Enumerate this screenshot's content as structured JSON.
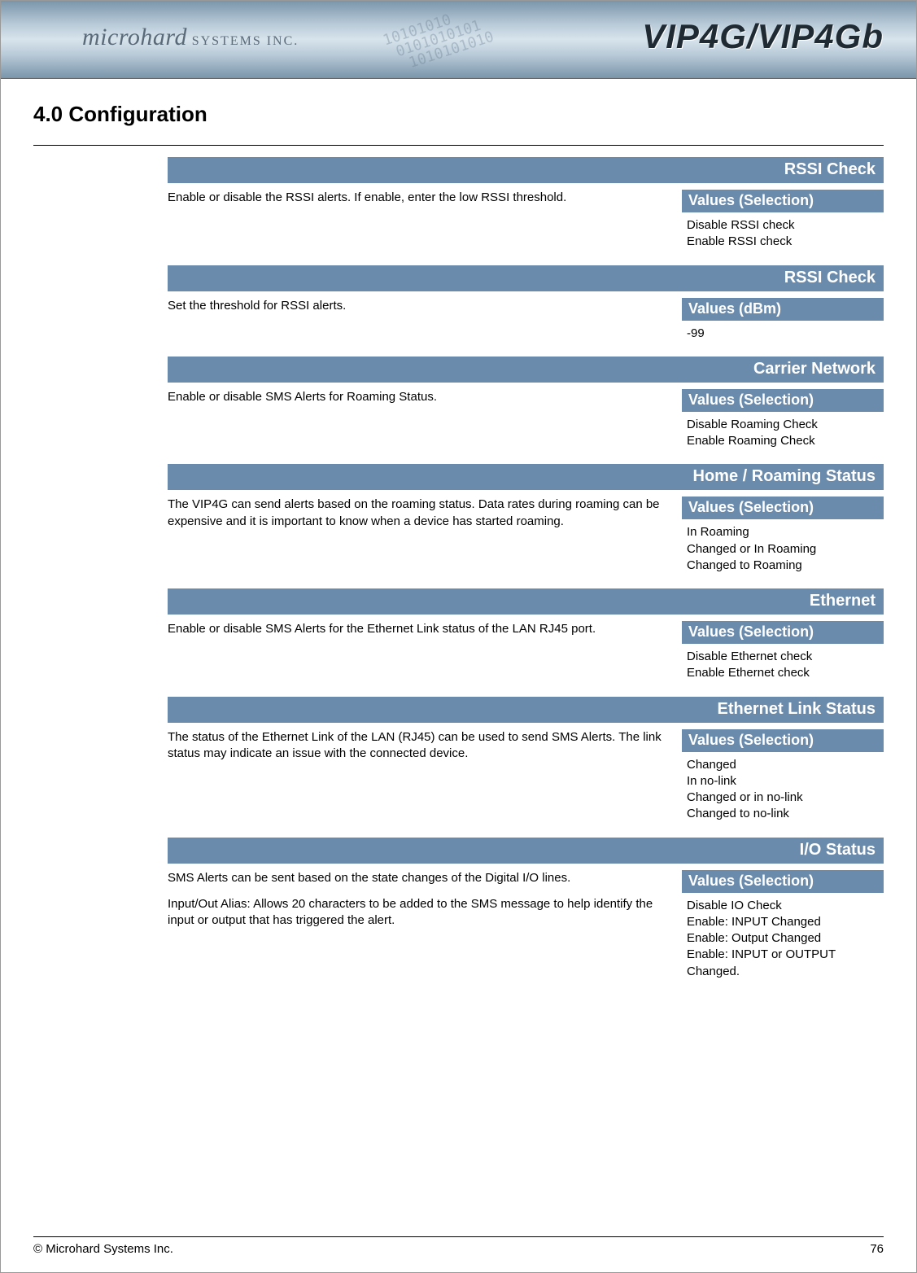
{
  "header": {
    "brand_main": "microhard",
    "brand_sub": "SYSTEMS INC.",
    "product": "VIP4G/VIP4Gb",
    "binary_deco": "10101010\n 0101010101\n  1010101010"
  },
  "section_title": "4.0  Configuration",
  "items": [
    {
      "title": "RSSI Check",
      "description": [
        "Enable or disable the RSSI alerts. If enable, enter the low RSSI threshold."
      ],
      "values_header": "Values (Selection)",
      "values": [
        "Disable RSSI check",
        "Enable RSSI check"
      ]
    },
    {
      "title": "RSSI Check",
      "description": [
        "Set the threshold for RSSI alerts."
      ],
      "values_header": "Values (dBm)",
      "values": [
        "-99"
      ]
    },
    {
      "title": "Carrier Network",
      "description": [
        "Enable or disable SMS Alerts for Roaming Status."
      ],
      "values_header": "Values (Selection)",
      "values": [
        "Disable Roaming Check",
        "Enable Roaming Check"
      ]
    },
    {
      "title": "Home / Roaming Status",
      "description": [
        "The VIP4G can send alerts based on the roaming status. Data rates during roaming can be expensive and it is important to know when a device has started roaming."
      ],
      "values_header": "Values (Selection)",
      "values": [
        "In Roaming",
        "Changed or In Roaming",
        "Changed to Roaming"
      ]
    },
    {
      "title": "Ethernet",
      "description": [
        "Enable or disable SMS Alerts for the Ethernet Link status of the LAN RJ45 port."
      ],
      "values_header": "Values (Selection)",
      "values": [
        "Disable Ethernet check",
        "Enable Ethernet check"
      ]
    },
    {
      "title": "Ethernet Link Status",
      "description": [
        "The status of the Ethernet Link of the LAN (RJ45) can be used to send SMS Alerts. The link status may indicate an issue with the connected device."
      ],
      "values_header": "Values (Selection)",
      "values": [
        "Changed",
        "In no-link",
        "Changed or in no-link",
        "Changed to no-link"
      ]
    },
    {
      "title": "I/O Status",
      "description": [
        "SMS Alerts can be sent based on the state changes of the Digital I/O lines.",
        "Input/Out Alias: Allows 20 characters to be added to the SMS message to help identify the input or output that has triggered the alert."
      ],
      "values_header": "Values (Selection)",
      "values": [
        "Disable IO Check",
        "Enable: INPUT Changed",
        "Enable: Output Changed",
        "Enable: INPUT or OUTPUT Changed."
      ]
    }
  ],
  "footer": {
    "copyright": "© Microhard Systems Inc.",
    "page_number": "76"
  },
  "style": {
    "accent_color": "#6b8bac",
    "text_color": "#000000",
    "bar_text_color": "#ffffff",
    "title_fontsize_pt": 20,
    "valheader_fontsize_pt": 18,
    "body_fontsize_pt": 15
  }
}
